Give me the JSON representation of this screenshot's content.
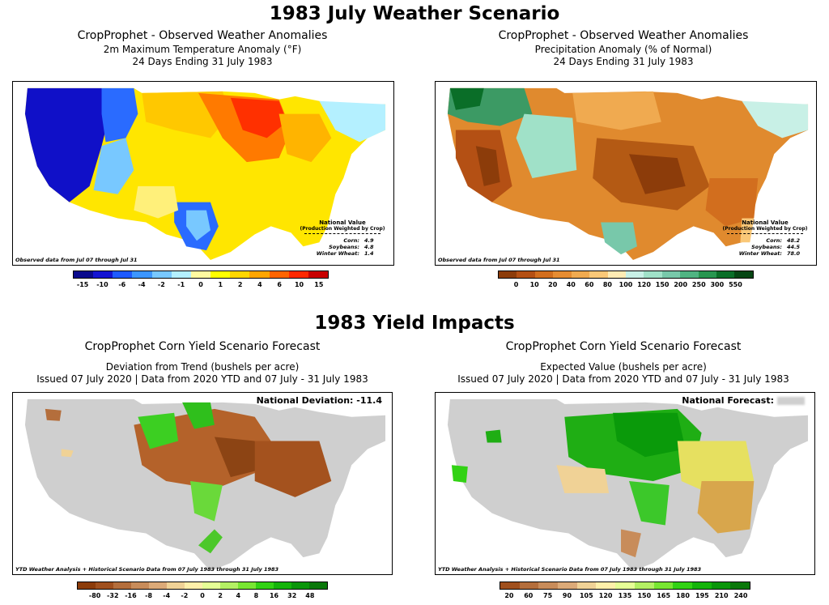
{
  "titles": {
    "top": "1983 July Weather Scenario",
    "bottom": "1983 Yield Impacts"
  },
  "panels": {
    "temp": {
      "line1": "CropProphet - Observed Weather Anomalies",
      "line2": "2m Maximum Temperature Anomaly (°F)",
      "line3": "24 Days Ending 31 July 1983",
      "footnote": "Observed data from Jul 07 through Jul 31",
      "national_title": "National Value",
      "national_sub": "(Production Weighted by Crop)",
      "national_rows": [
        {
          "label": "Corn:",
          "value": "4.9"
        },
        {
          "label": "Soybeans:",
          "value": "4.8"
        },
        {
          "label": "Winter Wheat:",
          "value": "1.4"
        }
      ],
      "colorbar": {
        "colors": [
          "#0a0a8c",
          "#1414d2",
          "#1e5aff",
          "#3c96ff",
          "#78c8ff",
          "#b4f0ff",
          "#fffaa0",
          "#ffff00",
          "#ffd700",
          "#ffa500",
          "#ff6400",
          "#ff2800",
          "#c80000"
        ],
        "ticks": [
          "-15",
          "-10",
          "-6",
          "-4",
          "-2",
          "-1",
          "0",
          "1",
          "2",
          "4",
          "6",
          "10",
          "15"
        ]
      }
    },
    "precip": {
      "line1": "CropProphet - Observed Weather Anomalies",
      "line2": "Precipitation Anomaly (% of Normal)",
      "line3": "24 Days Ending 31 July 1983",
      "footnote": "Observed data from Jul 07 through Jul 31",
      "national_title": "National Value",
      "national_sub": "(Production Weighted by Crop)",
      "national_rows": [
        {
          "label": "Corn:",
          "value": "48.2"
        },
        {
          "label": "Soybeans:",
          "value": "44.5"
        },
        {
          "label": "Winter Wheat:",
          "value": "78.0"
        }
      ],
      "colorbar": {
        "colors": [
          "#8c3c0a",
          "#b45014",
          "#d26e1e",
          "#e68c32",
          "#f0aa50",
          "#fac878",
          "#ffebb4",
          "#c8f0e6",
          "#a0e1c8",
          "#78c8aa",
          "#50b482",
          "#289650",
          "#0a6e28",
          "#064614"
        ],
        "ticks": [
          "0",
          "10",
          "20",
          "40",
          "60",
          "80",
          "100",
          "120",
          "150",
          "200",
          "250",
          "300",
          "550"
        ]
      }
    },
    "dev": {
      "line1": "CropProphet Corn Yield Scenario Forecast",
      "line2": "Deviation from Trend (bushels per acre)",
      "line3": "Issued 07 July 2020 | Data from 2020 YTD and 07 July - 31 July 1983",
      "headline_label": "National Deviation:",
      "headline_value": "-11.4",
      "footnote": "YTD Weather Analysis + Historical Scenario Data from 07 July 1983 through 31 July 1983",
      "colorbar": {
        "colors": [
          "#8c3c0a",
          "#a0501e",
          "#b46e3c",
          "#c88c5a",
          "#dcaa78",
          "#f0d296",
          "#fff0aa",
          "#e6ff96",
          "#b4f064",
          "#78e632",
          "#32d214",
          "#14b40a",
          "#0a960a",
          "#0a780a"
        ],
        "ticks": [
          "-80",
          "-32",
          "-16",
          "-8",
          "-4",
          "-2",
          "0",
          "2",
          "4",
          "8",
          "16",
          "32",
          "48"
        ]
      }
    },
    "ev": {
      "line1": "CropProphet Corn Yield Scenario Forecast",
      "line2": "Expected Value (bushels per acre)",
      "line3": "Issued 07 July 2020 | Data from 2020 YTD and 07 July - 31 July 1983",
      "headline_label": "National Forecast:",
      "footnote": "YTD Weather Analysis + Historical Scenario Data from 07 July 1983 through 31 July 1983",
      "colorbar": {
        "colors": [
          "#a0501e",
          "#b46e3c",
          "#c88c5a",
          "#dcaa78",
          "#f0d296",
          "#fff0aa",
          "#e6ff96",
          "#b4f064",
          "#78e632",
          "#32d214",
          "#14b40a",
          "#0a960a",
          "#0a780a"
        ],
        "ticks": [
          "20",
          "60",
          "75",
          "90",
          "105",
          "120",
          "135",
          "150",
          "165",
          "180",
          "195",
          "210",
          "240"
        ]
      }
    }
  }
}
